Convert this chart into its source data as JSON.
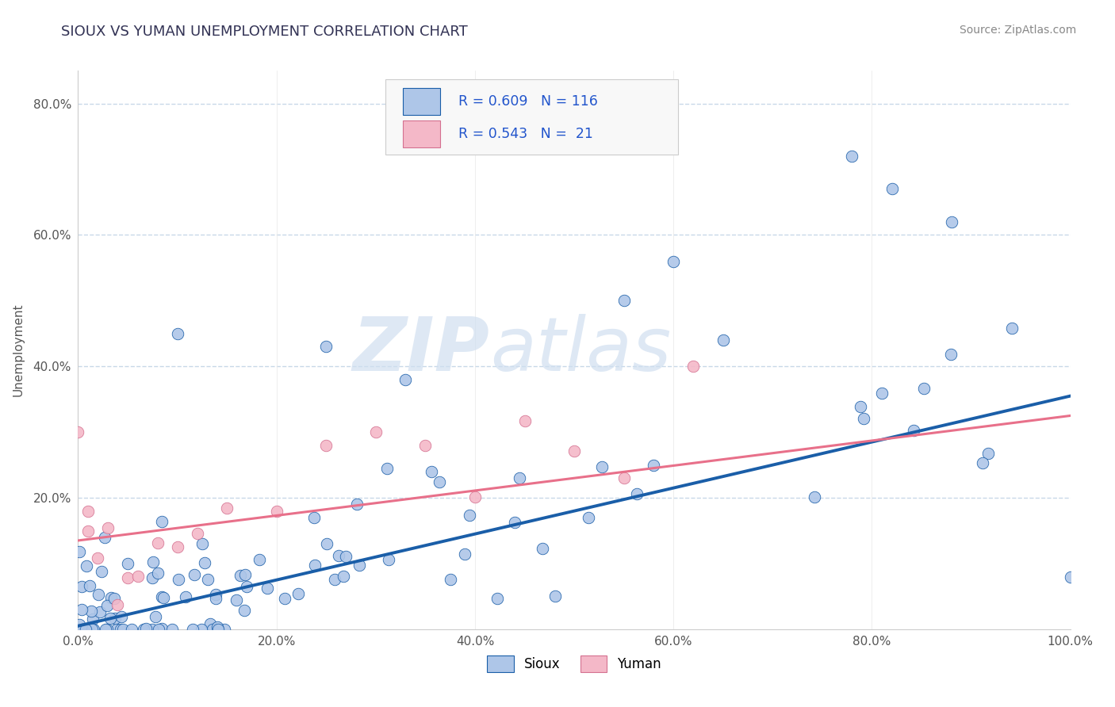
{
  "title": "SIOUX VS YUMAN UNEMPLOYMENT CORRELATION CHART",
  "source_text": "Source: ZipAtlas.com",
  "ylabel": "Unemployment",
  "xlim": [
    0,
    1.0
  ],
  "ylim": [
    0,
    0.85
  ],
  "xtick_labels": [
    "0.0%",
    "20.0%",
    "40.0%",
    "60.0%",
    "80.0%",
    "100.0%"
  ],
  "xtick_vals": [
    0,
    0.2,
    0.4,
    0.6,
    0.8,
    1.0
  ],
  "ytick_labels": [
    "20.0%",
    "40.0%",
    "60.0%",
    "80.0%"
  ],
  "ytick_vals": [
    0.2,
    0.4,
    0.6,
    0.8
  ],
  "sioux_color": "#aec6e8",
  "yuman_color": "#f4b8c8",
  "sioux_line_color": "#1a5ea8",
  "yuman_line_color": "#e8708a",
  "sioux_R": 0.609,
  "sioux_N": 116,
  "yuman_R": 0.543,
  "yuman_N": 21,
  "background_color": "#ffffff",
  "grid_color": "#c8d8e8",
  "watermark_zip": "ZIP",
  "watermark_atlas": "atlas",
  "sioux_line_start": 0.005,
  "sioux_line_end": 0.355,
  "yuman_line_start": 0.135,
  "yuman_line_end": 0.325
}
